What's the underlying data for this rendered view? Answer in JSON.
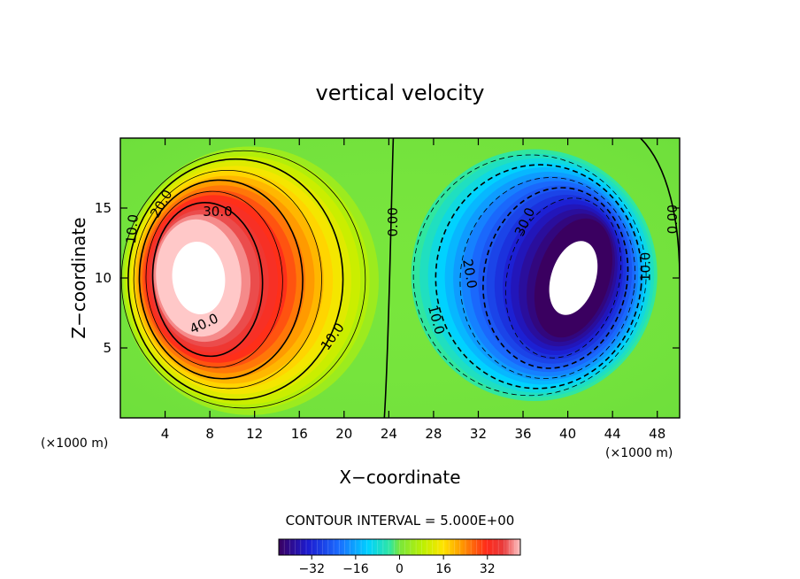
{
  "chart_data": {
    "type": "heatmap",
    "title": "vertical velocity",
    "xlabel": "X−coordinate",
    "ylabel": "Z−coordinate",
    "x_unit": "(×1000 m)",
    "z_unit": "(×1000 m)",
    "xlim": [
      0,
      50
    ],
    "ylim": [
      0,
      20
    ],
    "x_ticks": [
      4,
      8,
      12,
      16,
      20,
      24,
      28,
      32,
      36,
      40,
      44,
      48
    ],
    "y_ticks": [
      5,
      10,
      15
    ],
    "contour_interval_text": "CONTOUR INTERVAL = 5.000E+00",
    "contour_labels": [
      {
        "text": "10.0",
        "x": 1.1,
        "z": 13.5,
        "angle": -85
      },
      {
        "text": "20.0",
        "x": 3.7,
        "z": 15.3,
        "angle": -60
      },
      {
        "text": "30.0",
        "x": 8.7,
        "z": 14.7,
        "angle": 0
      },
      {
        "text": "40.0",
        "x": 7.5,
        "z": 6.7,
        "angle": -25
      },
      {
        "text": "10.0",
        "x": 19.0,
        "z": 5.8,
        "angle": -55
      },
      {
        "text": "0.00",
        "x": 24.4,
        "z": 14.0,
        "angle": -90
      },
      {
        "text": "10.0",
        "x": 28.2,
        "z": 7.0,
        "angle": 75
      },
      {
        "text": "20.0",
        "x": 31.2,
        "z": 10.3,
        "angle": 80
      },
      {
        "text": "30.0",
        "x": 36.2,
        "z": 14.0,
        "angle": -65
      },
      {
        "text": "10.0",
        "x": 47.0,
        "z": 10.8,
        "angle": -90
      },
      {
        "text": "0.00",
        "x": 49.4,
        "z": 14.2,
        "angle": -90
      }
    ],
    "colorbar": {
      "range": [
        -44,
        44
      ],
      "ticks": [
        -32,
        -16,
        0,
        16,
        32
      ]
    },
    "updraft": {
      "center_x": 7.0,
      "center_z": 10.0,
      "peak": 44
    },
    "downdraft": {
      "center_x": 40.5,
      "center_z": 10.0,
      "peak": -44
    }
  }
}
